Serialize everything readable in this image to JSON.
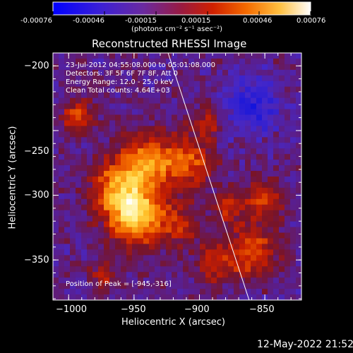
{
  "colorbar": {
    "units": "(photons cm⁻² s⁻¹ asec⁻²)",
    "tick_labels": [
      "-0.00076",
      "-0.00046",
      "-0.00015",
      "0.00015",
      "0.00046",
      "0.00076"
    ],
    "colormap": "rhessi red-temperature (blue→purple→red→orange→yellow→white)"
  },
  "image": {
    "title": "Reconstructed RHESSI Image",
    "annotations": {
      "time_range": "23-Jul-2012 04:55:08.000 to 05:01:08.000",
      "detectors": "Detectors: 3F 5F 6F 7F 8F, Att 0",
      "energy": "Energy Range: 12.0 - 25.0 keV",
      "clean": "Clean     Total counts: 4.64E+03",
      "peak": "Position of Peak = [-945,-316]"
    },
    "peak_position": [
      -945,
      -316
    ]
  },
  "chart_data": {
    "type": "heatmap",
    "title": "Reconstructed RHESSI Image",
    "xlabel": "Heliocentric X (arcsec)",
    "ylabel": "Heliocentric Y (arcsec)",
    "xlim": [
      -1012,
      -822
    ],
    "ylim": [
      -381,
      -190
    ],
    "x_ticks": [
      -1000,
      -950,
      -900,
      -850
    ],
    "y_ticks": [
      -200,
      -250,
      -300,
      -350
    ],
    "x_tick_labels": [
      "−1000",
      "−950",
      "−900",
      "−850"
    ],
    "y_tick_labels": [
      "−200",
      "−250",
      "−300",
      "−350"
    ],
    "colorbar_range": [
      -0.00076,
      0.00076
    ],
    "peak": {
      "x": -945,
      "y": -316
    },
    "limb_line": [
      [
        -924,
        -190
      ],
      [
        -862,
        -381
      ]
    ]
  },
  "footer": {
    "timestamp": "12-May-2022 21:52"
  }
}
